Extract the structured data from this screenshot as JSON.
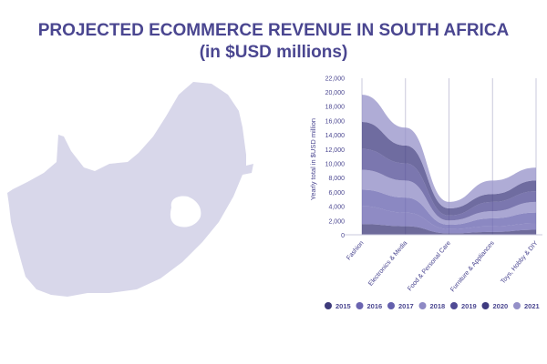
{
  "title_line1": "PROJECTED ECOMMERCE REVENUE IN SOUTH AFRICA",
  "title_line2": "(in $USD millions)",
  "map": {
    "color": "#d8d7ea",
    "region": "South Africa"
  },
  "chart_data": {
    "type": "area",
    "stacked": true,
    "ylabel": "Yearly total in $USD million",
    "xlabel": "",
    "ylim": [
      0,
      22000
    ],
    "yticks": [
      0,
      2000,
      4000,
      6000,
      8000,
      10000,
      12000,
      14000,
      16000,
      18000,
      20000,
      22000
    ],
    "ytick_labels": [
      "0",
      "2,000",
      "4,000",
      "6,000",
      "8,000",
      "10,000",
      "12,000",
      "14,000",
      "16,000",
      "18,000",
      "20,000",
      "22,000"
    ],
    "categories": [
      "Fashion",
      "Electronics & Media",
      "Food & Personal Care",
      "Furniture & Appliances",
      "Toys, Hobby & DIY"
    ],
    "grid": "vertical",
    "legend_position": "bottom",
    "series": [
      {
        "name": "2015",
        "color": "#3d3a7a",
        "values": [
          1500,
          1200,
          200,
          400,
          700
        ]
      },
      {
        "name": "2016",
        "color": "#6a64b0",
        "values": [
          2500,
          1900,
          600,
          800,
          900
        ]
      },
      {
        "name": "2017",
        "color": "#6460ad",
        "values": [
          2300,
          2100,
          600,
          1100,
          1500
        ]
      },
      {
        "name": "2018",
        "color": "#8e89c4",
        "values": [
          2800,
          2400,
          600,
          1000,
          1500
        ]
      },
      {
        "name": "2019",
        "color": "#4f4a94",
        "values": [
          2900,
          2400,
          700,
          1300,
          1500
        ]
      },
      {
        "name": "2020",
        "color": "#3f3b80",
        "values": [
          3800,
          2500,
          1000,
          1100,
          1500
        ]
      },
      {
        "name": "2021",
        "color": "#9490c8",
        "values": [
          3800,
          2500,
          900,
          1900,
          1800
        ]
      }
    ]
  }
}
